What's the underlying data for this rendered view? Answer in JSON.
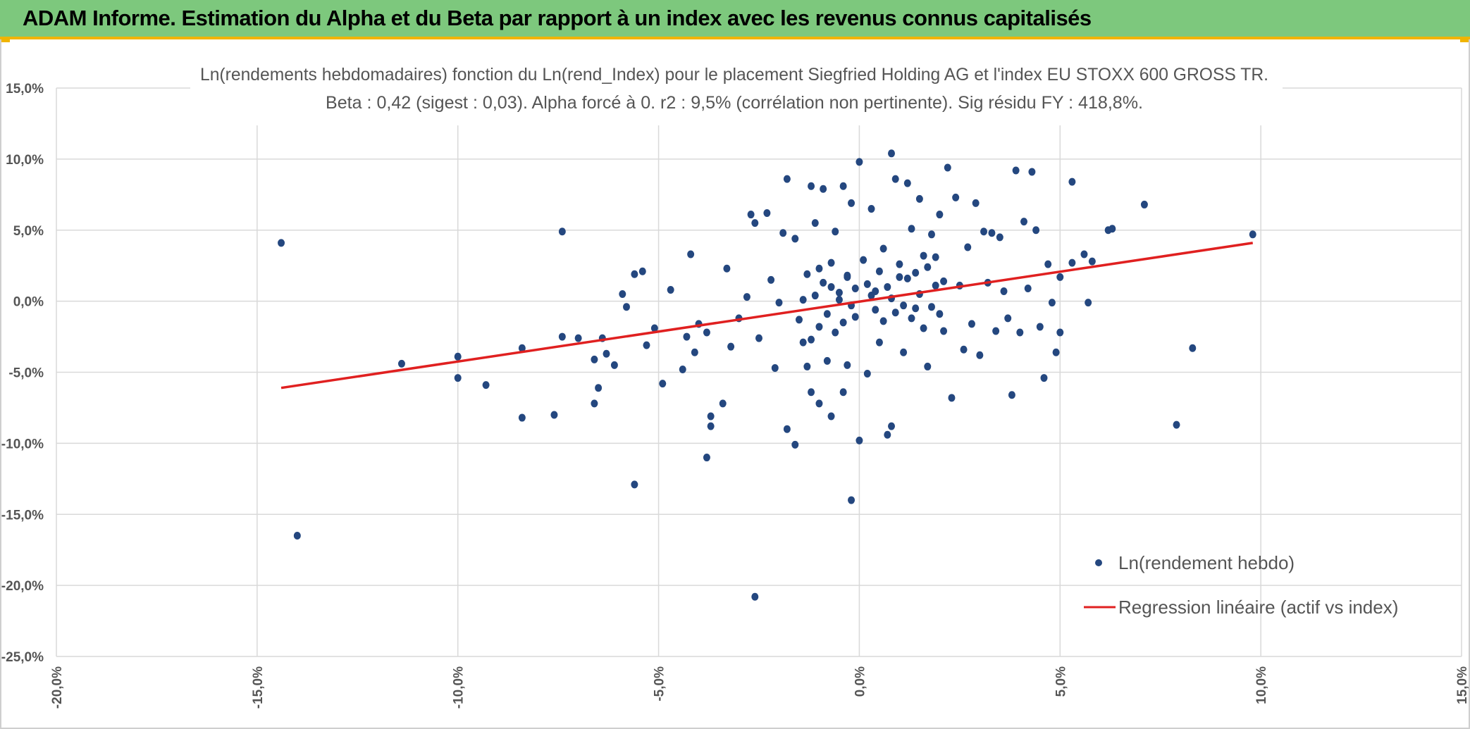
{
  "header": {
    "title": "ADAM Informe. Estimation du Alpha et du Beta par rapport à un index avec les revenus connus capitalisés",
    "bg_color": "#7dc87d",
    "accent_color": "#f0b400"
  },
  "chart_data": {
    "type": "scatter",
    "title": "Ln(rendements hebdomadaires) fonction du Ln(rend_Index) pour le placement Siegfried Holding AG et l'index EU STOXX 600 GROSS TR.",
    "subtitle": "Beta : 0,42 (sigest : 0,03). Alpha forcé à 0. r2 : 9,5% (corrélation non pertinente). Sig résidu FY : 418,8%.",
    "xlim": [
      -0.2,
      0.15
    ],
    "ylim": [
      -0.25,
      0.15
    ],
    "x_ticks": [
      -0.2,
      -0.15,
      -0.1,
      -0.05,
      0.0,
      0.05,
      0.1,
      0.15
    ],
    "x_tick_labels": [
      "-20,0%",
      "-15,0%",
      "-10,0%",
      "-5,0%",
      "0,0%",
      "5,0%",
      "10,0%",
      "15,0%"
    ],
    "y_ticks": [
      0.15,
      0.1,
      0.05,
      0.0,
      -0.05,
      -0.1,
      -0.15,
      -0.2,
      -0.25
    ],
    "y_tick_labels": [
      "15,0%",
      "10,0%",
      "5,0%",
      "0,0%",
      "-5,0%",
      "-10,0%",
      "-15,0%",
      "-20,0%",
      "-25,0%"
    ],
    "grid": true,
    "legend_position": "bottom-right",
    "series": [
      {
        "name": "Ln(rendement hebdo)",
        "kind": "scatter",
        "color": "#24477f",
        "points": [
          [
            -0.144,
            0.041
          ],
          [
            -0.14,
            -0.165
          ],
          [
            -0.114,
            -0.044
          ],
          [
            -0.1,
            -0.039
          ],
          [
            -0.1,
            -0.054
          ],
          [
            -0.093,
            -0.059
          ],
          [
            -0.084,
            -0.033
          ],
          [
            -0.084,
            -0.082
          ],
          [
            -0.076,
            -0.08
          ],
          [
            -0.074,
            0.049
          ],
          [
            -0.074,
            -0.025
          ],
          [
            -0.07,
            -0.026
          ],
          [
            -0.066,
            -0.041
          ],
          [
            -0.066,
            -0.072
          ],
          [
            -0.065,
            -0.061
          ],
          [
            -0.064,
            -0.026
          ],
          [
            -0.063,
            -0.037
          ],
          [
            -0.061,
            -0.045
          ],
          [
            -0.059,
            0.005
          ],
          [
            -0.058,
            -0.004
          ],
          [
            -0.056,
            0.019
          ],
          [
            -0.056,
            -0.129
          ],
          [
            -0.054,
            0.021
          ],
          [
            -0.053,
            -0.031
          ],
          [
            -0.051,
            -0.019
          ],
          [
            -0.049,
            -0.058
          ],
          [
            -0.047,
            0.008
          ],
          [
            -0.044,
            -0.048
          ],
          [
            -0.043,
            -0.025
          ],
          [
            -0.042,
            0.033
          ],
          [
            -0.041,
            -0.036
          ],
          [
            -0.04,
            -0.016
          ],
          [
            -0.038,
            -0.022
          ],
          [
            -0.038,
            -0.11
          ],
          [
            -0.037,
            -0.081
          ],
          [
            -0.037,
            -0.088
          ],
          [
            -0.034,
            -0.072
          ],
          [
            -0.033,
            0.023
          ],
          [
            -0.032,
            -0.032
          ],
          [
            -0.03,
            -0.012
          ],
          [
            -0.028,
            0.003
          ],
          [
            -0.027,
            0.061
          ],
          [
            -0.026,
            0.055
          ],
          [
            -0.026,
            -0.208
          ],
          [
            -0.025,
            -0.026
          ],
          [
            -0.023,
            0.062
          ],
          [
            -0.022,
            0.015
          ],
          [
            -0.021,
            -0.047
          ],
          [
            -0.02,
            -0.001
          ],
          [
            -0.019,
            0.048
          ],
          [
            -0.018,
            -0.09
          ],
          [
            -0.018,
            0.086
          ],
          [
            -0.016,
            -0.101
          ],
          [
            -0.016,
            0.044
          ],
          [
            -0.014,
            -0.029
          ],
          [
            -0.013,
            -0.046
          ],
          [
            -0.012,
            0.081
          ],
          [
            -0.012,
            -0.064
          ],
          [
            -0.011,
            0.055
          ],
          [
            -0.01,
            0.023
          ],
          [
            -0.01,
            -0.072
          ],
          [
            -0.009,
            0.079
          ],
          [
            -0.008,
            -0.042
          ],
          [
            -0.007,
            0.01
          ],
          [
            -0.007,
            -0.081
          ],
          [
            -0.006,
            0.049
          ],
          [
            -0.005,
            0.001
          ],
          [
            -0.004,
            -0.064
          ],
          [
            -0.004,
            0.081
          ],
          [
            -0.003,
            -0.045
          ],
          [
            -0.003,
            0.017
          ],
          [
            -0.002,
            -0.14
          ],
          [
            -0.002,
            0.069
          ],
          [
            -0.001,
            -0.011
          ],
          [
            0.0,
            0.098
          ],
          [
            0.0,
            -0.098
          ],
          [
            0.001,
            0.029
          ],
          [
            0.002,
            -0.051
          ],
          [
            0.003,
            0.065
          ],
          [
            0.004,
            0.007
          ],
          [
            0.005,
            -0.029
          ],
          [
            0.006,
            0.037
          ],
          [
            0.007,
            -0.094
          ],
          [
            0.008,
            0.104
          ],
          [
            0.008,
            -0.088
          ],
          [
            0.009,
            0.086
          ],
          [
            0.01,
            0.017
          ],
          [
            0.011,
            -0.036
          ],
          [
            0.012,
            0.083
          ],
          [
            0.013,
            0.051
          ],
          [
            0.014,
            -0.005
          ],
          [
            0.015,
            0.072
          ],
          [
            0.016,
            0.032
          ],
          [
            0.017,
            -0.046
          ],
          [
            0.018,
            0.047
          ],
          [
            0.019,
            0.011
          ],
          [
            0.02,
            0.061
          ],
          [
            0.021,
            -0.021
          ],
          [
            0.022,
            0.094
          ],
          [
            0.023,
            -0.068
          ],
          [
            0.024,
            0.073
          ],
          [
            0.025,
            0.011
          ],
          [
            0.026,
            -0.034
          ],
          [
            0.027,
            0.038
          ],
          [
            0.028,
            -0.016
          ],
          [
            0.029,
            0.069
          ],
          [
            0.03,
            -0.038
          ],
          [
            0.031,
            0.049
          ],
          [
            0.032,
            0.013
          ],
          [
            0.033,
            0.048
          ],
          [
            0.034,
            -0.021
          ],
          [
            0.035,
            0.045
          ],
          [
            0.036,
            0.007
          ],
          [
            0.037,
            -0.012
          ],
          [
            0.038,
            -0.066
          ],
          [
            0.039,
            0.092
          ],
          [
            0.04,
            -0.022
          ],
          [
            0.041,
            0.056
          ],
          [
            0.042,
            0.009
          ],
          [
            0.043,
            0.091
          ],
          [
            0.044,
            0.05
          ],
          [
            0.045,
            -0.018
          ],
          [
            0.046,
            -0.054
          ],
          [
            0.047,
            0.026
          ],
          [
            0.048,
            -0.001
          ],
          [
            0.049,
            -0.036
          ],
          [
            0.05,
            0.017
          ],
          [
            0.05,
            -0.022
          ],
          [
            0.053,
            0.027
          ],
          [
            0.053,
            0.084
          ],
          [
            0.056,
            0.033
          ],
          [
            0.057,
            -0.001
          ],
          [
            0.058,
            0.028
          ],
          [
            0.062,
            0.05
          ],
          [
            0.063,
            0.051
          ],
          [
            0.071,
            0.068
          ],
          [
            0.079,
            -0.087
          ],
          [
            0.083,
            -0.033
          ],
          [
            0.098,
            0.047
          ],
          [
            0.002,
            0.012
          ],
          [
            0.003,
            0.004
          ],
          [
            0.004,
            -0.006
          ],
          [
            0.005,
            0.021
          ],
          [
            0.006,
            -0.014
          ],
          [
            0.007,
            0.01
          ],
          [
            0.008,
            0.002
          ],
          [
            0.009,
            -0.008
          ],
          [
            0.01,
            0.026
          ],
          [
            0.011,
            -0.003
          ],
          [
            0.012,
            0.016
          ],
          [
            0.013,
            -0.012
          ],
          [
            0.014,
            0.02
          ],
          [
            0.015,
            0.005
          ],
          [
            0.016,
            -0.019
          ],
          [
            0.017,
            0.024
          ],
          [
            0.018,
            -0.004
          ],
          [
            0.019,
            0.031
          ],
          [
            0.02,
            -0.009
          ],
          [
            0.021,
            0.014
          ],
          [
            -0.001,
            0.009
          ],
          [
            -0.002,
            -0.003
          ],
          [
            -0.003,
            0.018
          ],
          [
            -0.004,
            -0.015
          ],
          [
            -0.005,
            0.006
          ],
          [
            -0.006,
            -0.022
          ],
          [
            -0.007,
            0.027
          ],
          [
            -0.008,
            -0.009
          ],
          [
            -0.009,
            0.013
          ],
          [
            -0.01,
            -0.018
          ],
          [
            -0.011,
            0.004
          ],
          [
            -0.012,
            -0.027
          ],
          [
            -0.013,
            0.019
          ],
          [
            -0.014,
            0.001
          ],
          [
            -0.015,
            -0.013
          ]
        ]
      },
      {
        "name": "Regression linéaire (actif vs index)",
        "kind": "line",
        "color": "#e02020",
        "x": [
          -0.144,
          0.098
        ],
        "y": [
          -0.061,
          0.041
        ]
      }
    ]
  }
}
